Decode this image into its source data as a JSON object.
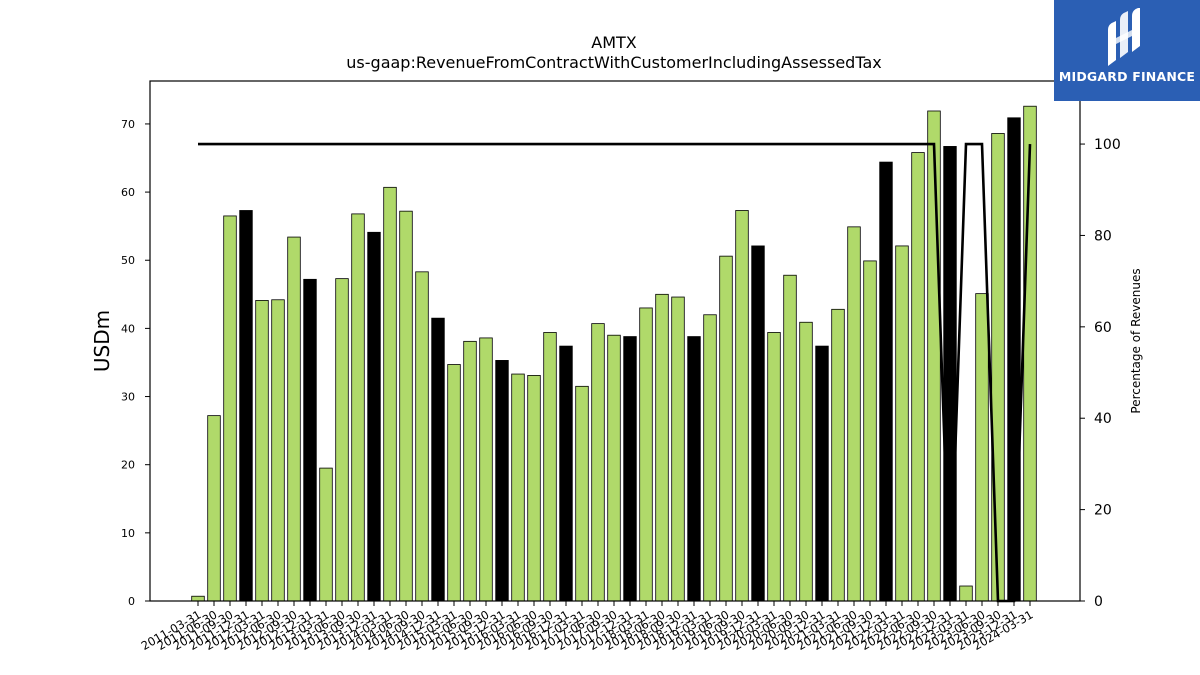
{
  "chart_data": {
    "type": "bar",
    "title": "AMTX",
    "subtitle": "us-gaap:RevenueFromContractWithCustomerIncludingAssessedTax",
    "ylabel": "USDm",
    "y2label": "Percentage of Revenues",
    "ylim": [
      0,
      76.3
    ],
    "y2lim": [
      0,
      113.8
    ],
    "yticks": [
      0,
      10,
      20,
      30,
      40,
      50,
      60,
      70
    ],
    "y2ticks": [
      0,
      20,
      40,
      60,
      80,
      100
    ],
    "categories": [
      "2011-03-31",
      "2011-06-30",
      "2011-09-30",
      "2011-12-31",
      "2012-03-31",
      "2012-06-30",
      "2012-09-30",
      "2012-12-31",
      "2013-03-31",
      "2013-06-30",
      "2013-09-30",
      "2013-12-31",
      "2014-03-31",
      "2014-06-30",
      "2014-09-30",
      "2014-12-31",
      "2015-03-31",
      "2015-06-30",
      "2015-09-30",
      "2015-12-31",
      "2016-03-31",
      "2016-06-30",
      "2016-09-30",
      "2016-12-31",
      "2017-03-31",
      "2017-06-30",
      "2017-09-30",
      "2017-12-31",
      "2018-03-31",
      "2018-06-30",
      "2018-09-30",
      "2018-12-31",
      "2019-03-31",
      "2019-06-30",
      "2019-09-30",
      "2019-12-31",
      "2020-03-31",
      "2020-06-30",
      "2020-09-30",
      "2020-12-31",
      "2021-03-31",
      "2021-06-30",
      "2021-09-30",
      "2021-12-31",
      "2022-03-31",
      "2022-06-30",
      "2022-09-30",
      "2022-12-31",
      "2023-03-31",
      "2023-06-30",
      "2023-09-30",
      "2023-12-31",
      "2024-03-31"
    ],
    "values": [
      0.7,
      27.2,
      56.5,
      57.3,
      44.1,
      44.2,
      53.4,
      47.2,
      19.5,
      47.3,
      56.8,
      54.1,
      60.7,
      57.2,
      48.3,
      41.5,
      34.7,
      38.1,
      38.6,
      35.3,
      33.3,
      33.1,
      39.4,
      37.4,
      31.5,
      40.7,
      39.0,
      38.8,
      43.0,
      45.0,
      44.6,
      38.8,
      42.0,
      50.6,
      57.3,
      52.1,
      39.4,
      47.8,
      40.9,
      37.4,
      42.8,
      54.9,
      49.9,
      64.4,
      52.1,
      65.8,
      71.9,
      66.7,
      2.2,
      45.1,
      68.6,
      70.9,
      72.6
    ],
    "annual": [
      false,
      false,
      false,
      true,
      false,
      false,
      false,
      true,
      false,
      false,
      false,
      true,
      false,
      false,
      false,
      true,
      false,
      false,
      false,
      true,
      false,
      false,
      false,
      true,
      false,
      false,
      false,
      true,
      false,
      false,
      false,
      true,
      false,
      false,
      false,
      true,
      false,
      false,
      false,
      true,
      false,
      false,
      false,
      true,
      false,
      false,
      false,
      true,
      false,
      false,
      false,
      true,
      false
    ],
    "pct_line": [
      100,
      100,
      100,
      100,
      100,
      100,
      100,
      100,
      100,
      100,
      100,
      100,
      100,
      100,
      100,
      100,
      100,
      100,
      100,
      100,
      100,
      100,
      100,
      100,
      100,
      100,
      100,
      100,
      100,
      100,
      100,
      100,
      100,
      100,
      100,
      100,
      100,
      100,
      100,
      100,
      100,
      100,
      100,
      100,
      100,
      100,
      100,
      0,
      100,
      100,
      0,
      0,
      100
    ],
    "colors": {
      "quarter_bar": "#b0d96a",
      "annual_bar": "#000000",
      "line": "#000000"
    }
  },
  "logo": {
    "text": "MIDGARD FINANCE"
  }
}
